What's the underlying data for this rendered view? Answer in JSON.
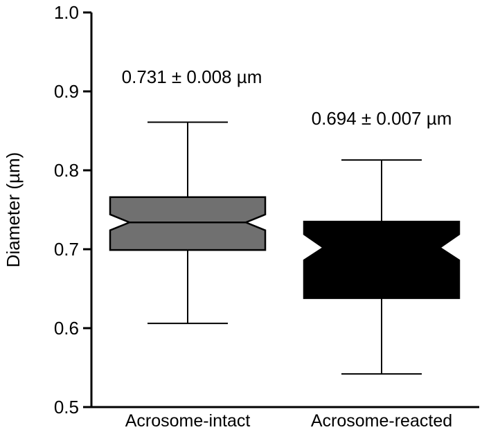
{
  "chart_data": {
    "type": "box",
    "notched": true,
    "ylabel": "Diameter (µm)",
    "ylim": [
      0.5,
      1.0
    ],
    "yticks": [
      "0.5",
      "0.6",
      "0.7",
      "0.8",
      "0.9",
      "1.0"
    ],
    "categories": [
      "Acrosome-intact",
      "Acrosome-reacted"
    ],
    "boxes": [
      {
        "category": "Acrosome-intact",
        "whisker_low": 0.606,
        "q1": 0.699,
        "median": 0.734,
        "q3": 0.766,
        "whisker_high": 0.861,
        "notch_low": 0.724,
        "notch_high": 0.744,
        "color": "#707070",
        "annotation": "0.731 ± 0.008 µm"
      },
      {
        "category": "Acrosome-reacted",
        "whisker_low": 0.542,
        "q1": 0.638,
        "median": 0.702,
        "q3": 0.735,
        "whisker_high": 0.813,
        "notch_low": 0.686,
        "notch_high": 0.719,
        "color": "#000000",
        "annotation": "0.694 ± 0.007 µm"
      }
    ]
  }
}
